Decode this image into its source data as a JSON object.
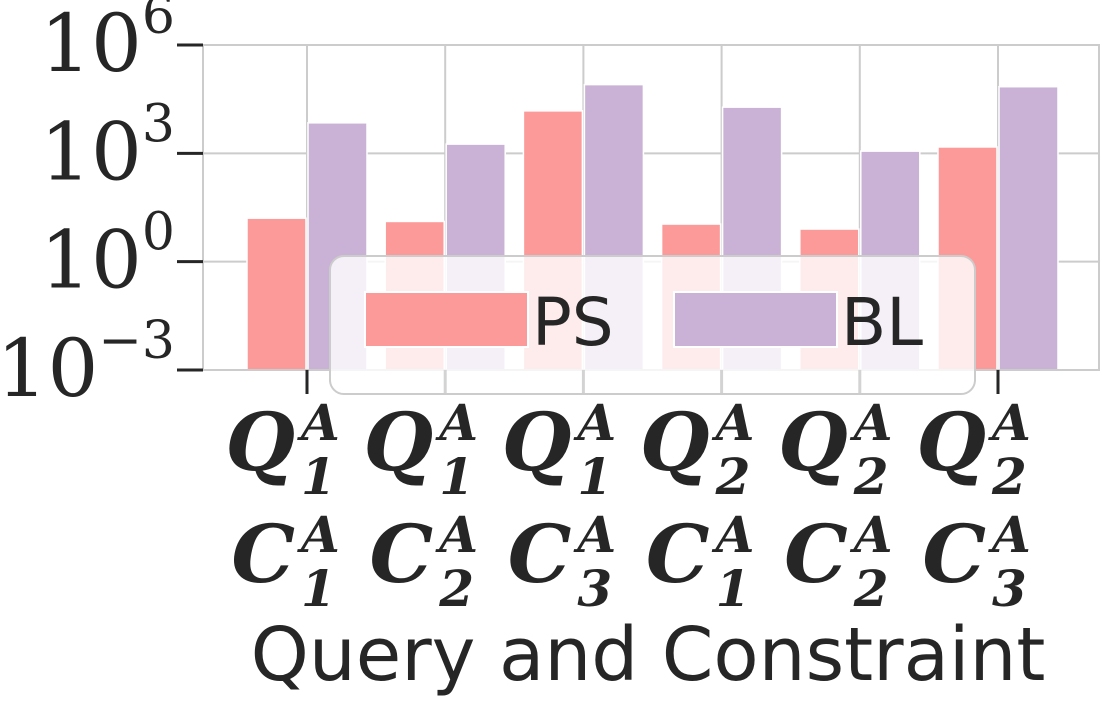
{
  "chart_data": {
    "type": "bar",
    "y_scale": "log",
    "ylim": [
      0.001,
      1000000
    ],
    "y_ticks": [
      {
        "base": "10",
        "exp": "6"
      },
      {
        "base": "10",
        "exp": "3"
      },
      {
        "base": "10",
        "exp": "0"
      },
      {
        "base": "10",
        "exp": "−3"
      }
    ],
    "categories": [
      {
        "q": "Q",
        "q_sub": "1",
        "q_sup": "A",
        "c": "C",
        "c_sub": "1",
        "c_sup": "A"
      },
      {
        "q": "Q",
        "q_sub": "1",
        "q_sup": "A",
        "c": "C",
        "c_sub": "2",
        "c_sup": "A"
      },
      {
        "q": "Q",
        "q_sub": "1",
        "q_sup": "A",
        "c": "C",
        "c_sub": "3",
        "c_sup": "A"
      },
      {
        "q": "Q",
        "q_sub": "2",
        "q_sup": "A",
        "c": "C",
        "c_sub": "1",
        "c_sup": "A"
      },
      {
        "q": "Q",
        "q_sub": "2",
        "q_sup": "A",
        "c": "C",
        "c_sub": "2",
        "c_sup": "A"
      },
      {
        "q": "Q",
        "q_sub": "2",
        "q_sup": "A",
        "c": "C",
        "c_sub": "3",
        "c_sup": "A"
      }
    ],
    "series": [
      {
        "name": "PS",
        "color": "#fb9a99",
        "values": [
          16,
          13,
          15000,
          11,
          8,
          1500
        ]
      },
      {
        "name": "BL",
        "color": "#cab2d6",
        "values": [
          7000,
          1800,
          80000,
          19000,
          1150,
          70000
        ]
      }
    ],
    "xlabel": "Query and Constraint",
    "ylabel": "",
    "grid": true,
    "legend": {
      "placement": "lower-center",
      "entries": [
        "PS",
        "BL"
      ]
    }
  }
}
